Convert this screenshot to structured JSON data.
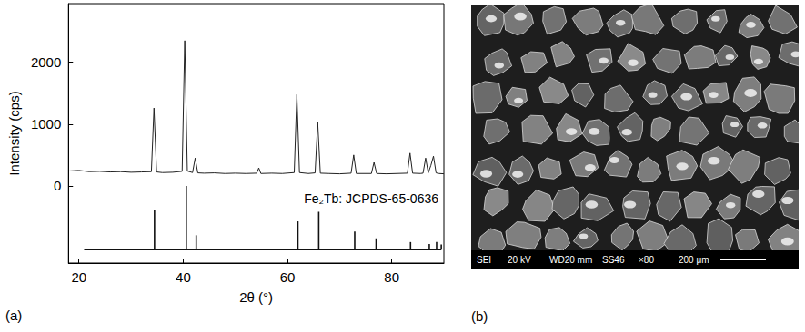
{
  "chart_data": {
    "type": "line",
    "panel": "(a)",
    "xlabel": "2θ (°)",
    "ylabel": "Intensity (cps)",
    "xlim": [
      18,
      90
    ],
    "xticks": [
      20,
      40,
      60,
      80
    ],
    "ylim": [
      -1250,
      2950
    ],
    "yticks": [
      0,
      1000,
      2000
    ],
    "grid": false,
    "series": [
      {
        "type": "line",
        "color": "#222222",
        "x": [
          18,
          20,
          22,
          24,
          26,
          28,
          30,
          32,
          33.9,
          34.4,
          34.9,
          36,
          38,
          39.8,
          40.3,
          40.8,
          41.8,
          42.3,
          42.8,
          44,
          46,
          48,
          50,
          52,
          54.1,
          54.5,
          54.9,
          57,
          59,
          61.3,
          61.8,
          62.3,
          64,
          65.3,
          65.8,
          66.3,
          68,
          70,
          72.2,
          72.7,
          73.2,
          75,
          76.1,
          76.6,
          77.1,
          79,
          81,
          83,
          83.5,
          84,
          85.5,
          86,
          86.5,
          87,
          87.5,
          88,
          88.5,
          89,
          90
        ],
        "values": [
          240,
          250,
          230,
          235,
          225,
          230,
          220,
          225,
          230,
          1260,
          225,
          215,
          220,
          235,
          2350,
          240,
          215,
          450,
          210,
          205,
          210,
          200,
          205,
          200,
          205,
          290,
          200,
          205,
          200,
          215,
          1480,
          215,
          200,
          210,
          1030,
          205,
          200,
          195,
          205,
          500,
          200,
          200,
          200,
          380,
          200,
          195,
          200,
          205,
          530,
          205,
          200,
          205,
          450,
          210,
          330,
          480,
          210,
          200,
          195
        ]
      },
      {
        "type": "stick",
        "color": "#111111",
        "x": [
          34.5,
          40.6,
          42.5,
          62.0,
          66.0,
          72.9,
          77.0,
          83.6,
          87.2,
          88.6,
          89.5
        ],
        "values": [
          -390,
          0,
          -800,
          -575,
          -420,
          -740,
          -850,
          -910,
          -940,
          -910,
          -950
        ],
        "base": -1035,
        "baseline_x": [
          21,
          89.5
        ]
      }
    ],
    "annotations": [
      {
        "text": "Fe₂Tb: JCPDS-65-0636"
      }
    ]
  },
  "micrograph": {
    "panel": "(b)",
    "info": [
      "SEI",
      "20 kV",
      "WD20 mm",
      "SS46",
      "×80"
    ],
    "scale_bar": "200 μm"
  }
}
